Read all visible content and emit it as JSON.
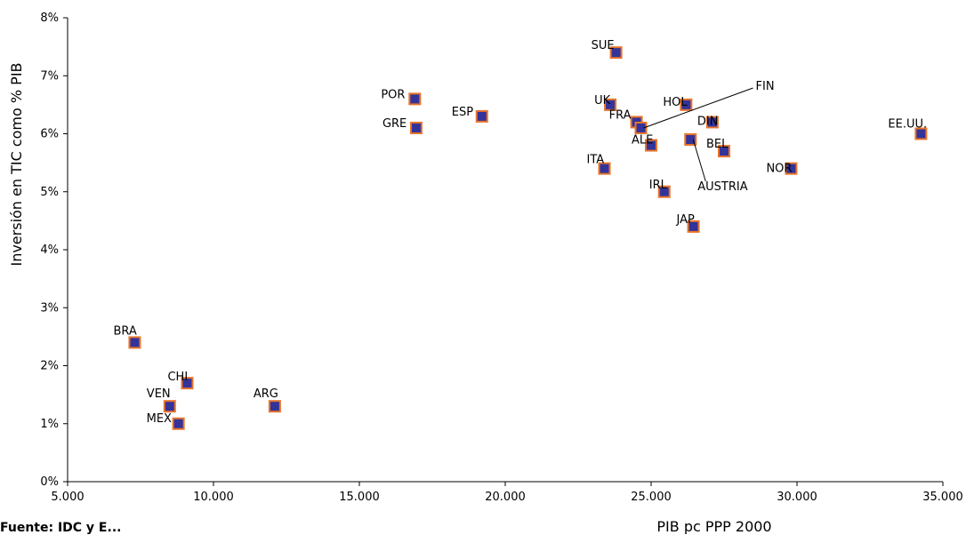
{
  "chart_data": {
    "type": "scatter",
    "title": "",
    "xlabel": "PIB pc PPP 2000",
    "ylabel": "Inversión en TIC como % PIB",
    "xlim": [
      5000,
      35000
    ],
    "ylim": [
      0,
      8
    ],
    "x_ticks": [
      5000,
      10000,
      15000,
      20000,
      25000,
      30000,
      35000
    ],
    "x_tick_labels": [
      "5.000",
      "10.000",
      "15.000",
      "20.000",
      "25.000",
      "30.000",
      "35.000"
    ],
    "y_ticks": [
      0,
      1,
      2,
      3,
      4,
      5,
      6,
      7,
      8
    ],
    "y_tick_labels": [
      "0%",
      "1%",
      "2%",
      "3%",
      "4%",
      "5%",
      "6%",
      "7%",
      "8%"
    ],
    "grid": false,
    "legend": "none",
    "marker_fill": "#33339a",
    "marker_edge": "#e8742a",
    "points": [
      {
        "label": "BRA",
        "x": 7300,
        "y": 2.4
      },
      {
        "label": "CHI",
        "x": 9100,
        "y": 1.7
      },
      {
        "label": "VEN",
        "x": 8500,
        "y": 1.3
      },
      {
        "label": "MEX",
        "x": 8800,
        "y": 1.0
      },
      {
        "label": "ARG",
        "x": 12100,
        "y": 1.3
      },
      {
        "label": "POR",
        "x": 16900,
        "y": 6.6
      },
      {
        "label": "GRE",
        "x": 16950,
        "y": 6.1
      },
      {
        "label": "ESP",
        "x": 19200,
        "y": 6.3
      },
      {
        "label": "SUE",
        "x": 23800,
        "y": 7.4
      },
      {
        "label": "UK",
        "x": 23600,
        "y": 6.5
      },
      {
        "label": "FRA",
        "x": 24500,
        "y": 6.2
      },
      {
        "label": "FIN",
        "x": 24650,
        "y": 6.1
      },
      {
        "label": "ALE",
        "x": 25000,
        "y": 5.8
      },
      {
        "label": "ITA",
        "x": 23400,
        "y": 5.4
      },
      {
        "label": "HOL",
        "x": 26200,
        "y": 6.5
      },
      {
        "label": "DIN",
        "x": 27100,
        "y": 6.2
      },
      {
        "label": "AUSTRIA",
        "x": 26350,
        "y": 5.9
      },
      {
        "label": "BEL",
        "x": 27500,
        "y": 5.7
      },
      {
        "label": "IRL",
        "x": 25450,
        "y": 5.0
      },
      {
        "label": "JAP",
        "x": 26450,
        "y": 4.4
      },
      {
        "label": "NOR",
        "x": 29800,
        "y": 5.4
      },
      {
        "label": "EE.UU.",
        "x": 34250,
        "y": 6.0
      }
    ]
  },
  "source_note": "Fuente: IDC y E..."
}
